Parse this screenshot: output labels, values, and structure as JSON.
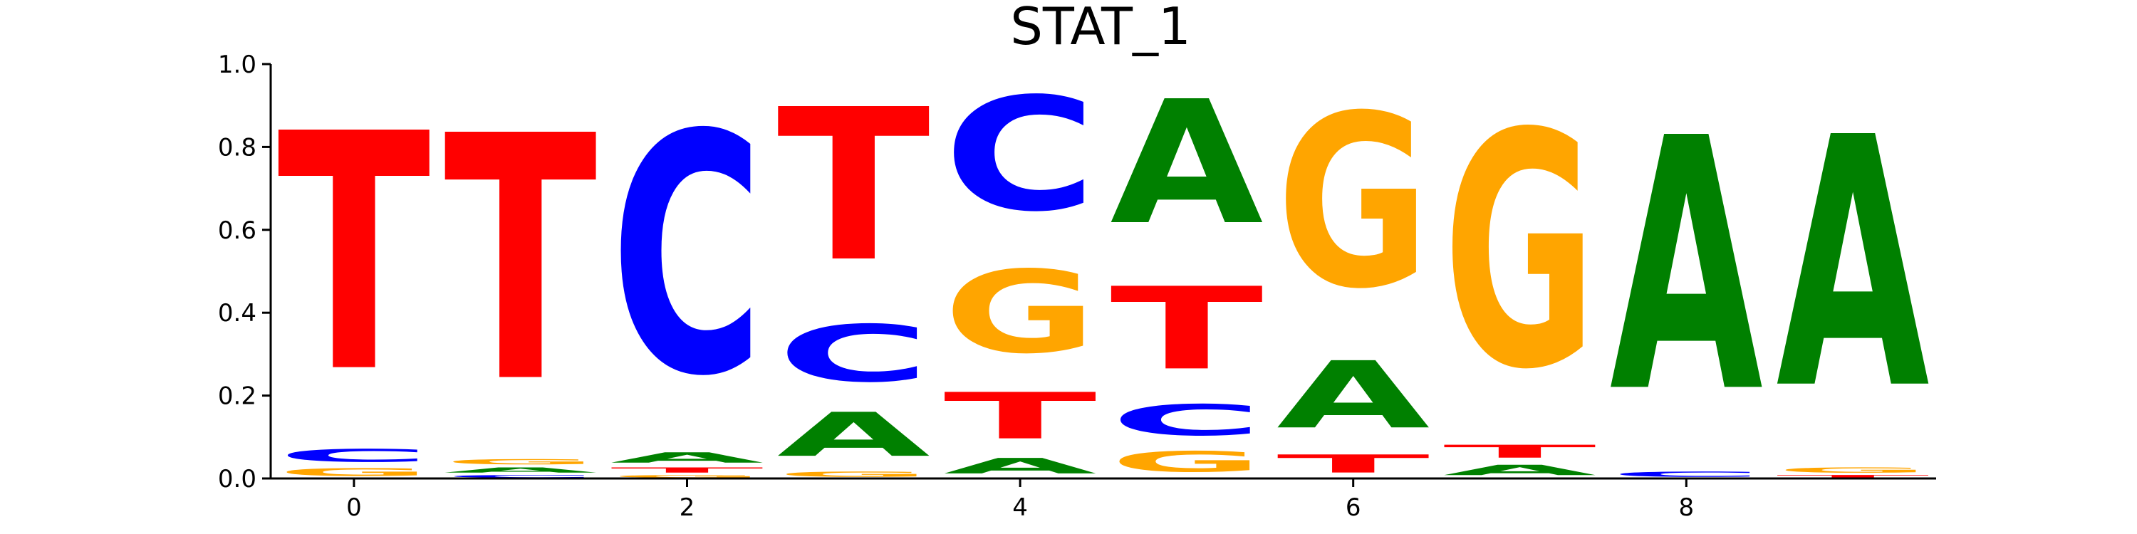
{
  "chart_data": {
    "type": "sequence-logo",
    "title": "STAT_1",
    "xlabel": "",
    "ylabel": "",
    "ylim": [
      0.0,
      1.0
    ],
    "xlim": [
      -0.5,
      9.5
    ],
    "x_ticks": [
      {
        "value": 0,
        "label": "0"
      },
      {
        "value": 2,
        "label": "2"
      },
      {
        "value": 4,
        "label": "4"
      },
      {
        "value": 6,
        "label": "6"
      },
      {
        "value": 8,
        "label": "8"
      }
    ],
    "y_ticks": [
      {
        "value": 0.0,
        "label": "0.0"
      },
      {
        "value": 0.2,
        "label": "0.2"
      },
      {
        "value": 0.4,
        "label": "0.4"
      },
      {
        "value": 0.6,
        "label": "0.6"
      },
      {
        "value": 0.8,
        "label": "0.8"
      },
      {
        "value": 1.0,
        "label": "1.0"
      }
    ],
    "colors": {
      "A": "#008000",
      "C": "#0000ff",
      "G": "#ffa500",
      "T": "#ff0000"
    },
    "positions": [
      {
        "position": 0,
        "stack": [
          {
            "base": "G",
            "value": 0.03
          },
          {
            "base": "C",
            "value": 0.05
          },
          {
            "base": "T",
            "value": 0.92
          }
        ]
      },
      {
        "position": 1,
        "stack": [
          {
            "base": "C",
            "value": 0.01
          },
          {
            "base": "A",
            "value": 0.02
          },
          {
            "base": "G",
            "value": 0.02
          },
          {
            "base": "T",
            "value": 0.95
          }
        ]
      },
      {
        "position": 2,
        "stack": [
          {
            "base": "G",
            "value": 0.01
          },
          {
            "base": "T",
            "value": 0.02
          },
          {
            "base": "A",
            "value": 0.04
          },
          {
            "base": "C",
            "value": 0.93
          }
        ]
      },
      {
        "position": 3,
        "stack": [
          {
            "base": "G",
            "value": 0.02
          },
          {
            "base": "A",
            "value": 0.17
          },
          {
            "base": "C",
            "value": 0.22
          },
          {
            "base": "T",
            "value": 0.59
          }
        ]
      },
      {
        "position": 4,
        "stack": [
          {
            "base": "A",
            "value": 0.06
          },
          {
            "base": "T",
            "value": 0.18
          },
          {
            "base": "G",
            "value": 0.32
          },
          {
            "base": "C",
            "value": 0.44
          }
        ]
      },
      {
        "position": 5,
        "stack": [
          {
            "base": "G",
            "value": 0.08
          },
          {
            "base": "C",
            "value": 0.12
          },
          {
            "base": "T",
            "value": 0.32
          },
          {
            "base": "A",
            "value": 0.48
          }
        ]
      },
      {
        "position": 6,
        "stack": [
          {
            "base": "T",
            "value": 0.07
          },
          {
            "base": "A",
            "value": 0.26
          },
          {
            "base": "G",
            "value": 0.67
          }
        ]
      },
      {
        "position": 7,
        "stack": [
          {
            "base": "A",
            "value": 0.04
          },
          {
            "base": "T",
            "value": 0.05
          },
          {
            "base": "G",
            "value": 0.91
          }
        ]
      },
      {
        "position": 8,
        "stack": [
          {
            "base": "C",
            "value": 0.02
          },
          {
            "base": "A",
            "value": 0.98
          }
        ]
      },
      {
        "position": 9,
        "stack": [
          {
            "base": "T",
            "value": 0.01
          },
          {
            "base": "G",
            "value": 0.02
          },
          {
            "base": "A",
            "value": 0.97
          }
        ]
      }
    ]
  }
}
